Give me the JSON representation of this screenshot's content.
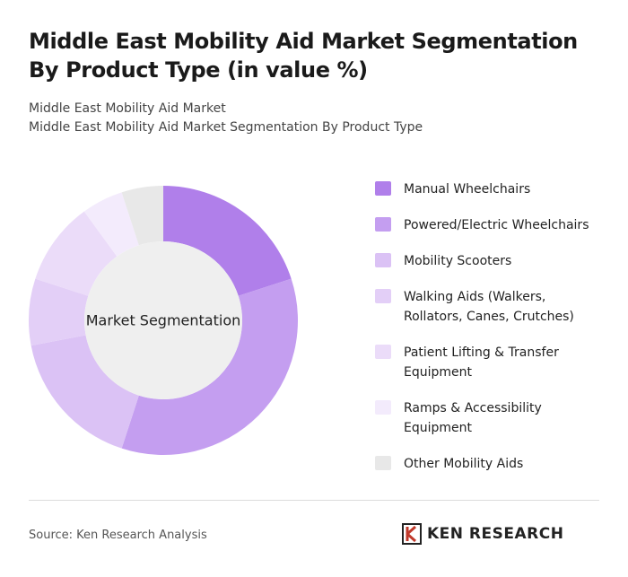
{
  "chart_data": {
    "type": "pie",
    "title": "Middle East Mobility Aid Market Segmentation By Product Type (in value %)",
    "subtitle": [
      "Middle East Mobility Aid Market",
      "Middle East Mobility Aid Market Segmentation By Product Type"
    ],
    "center_label": "Market Segmentation",
    "categories": [
      "Manual Wheelchairs",
      "Powered/Electric Wheelchairs",
      "Mobility Scooters",
      "Walking Aids (Walkers, Rollators, Canes, Crutches)",
      "Patient Lifting & Transfer Equipment",
      "Ramps & Accessibility Equipment",
      "Other Mobility Aids"
    ],
    "values": [
      20,
      35,
      17,
      8,
      10,
      5,
      5
    ],
    "colors": [
      "#b07fea",
      "#c49ef0",
      "#dbc2f5",
      "#e3cff7",
      "#ebdcf9",
      "#f3ebfc",
      "#e8e8e8"
    ],
    "source": "Source: Ken Research Analysis",
    "logo": "KEN RESEARCH"
  }
}
